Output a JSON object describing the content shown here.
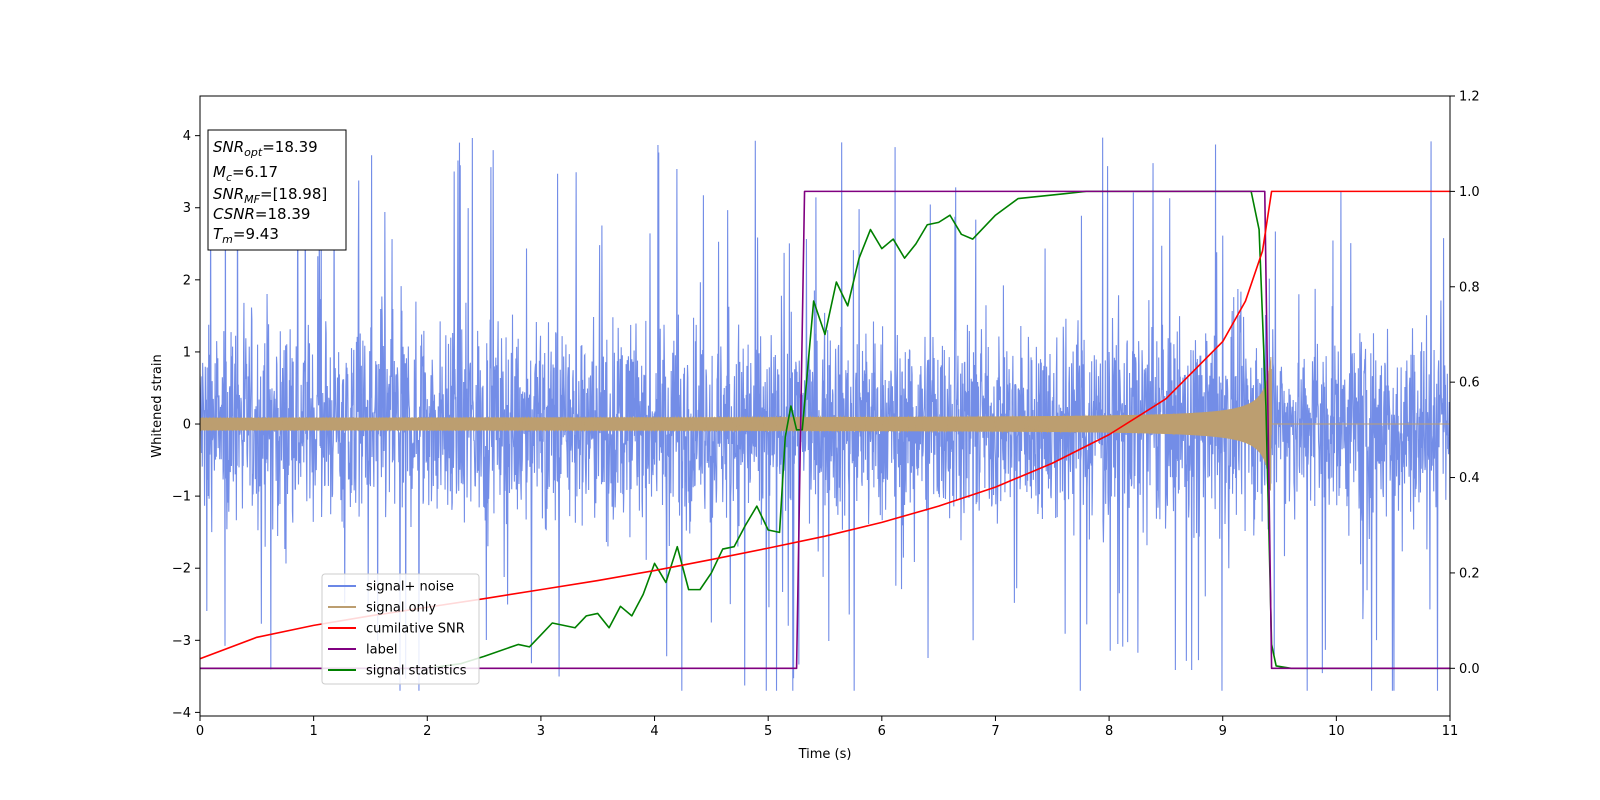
{
  "chart_data": {
    "type": "line",
    "title": "",
    "xlabel": "Time (s)",
    "ylabel": "Whitened strain",
    "y2label": "",
    "xlim": [
      0,
      11
    ],
    "ylim": [
      -4.05,
      4.55
    ],
    "y2lim": [
      -0.1,
      1.2
    ],
    "x_ticks": [
      0,
      1,
      2,
      3,
      4,
      5,
      6,
      7,
      8,
      9,
      10,
      11
    ],
    "y_ticks": [
      -4,
      -3,
      -2,
      -1,
      0,
      1,
      2,
      3,
      4
    ],
    "y2_ticks": [
      0.0,
      0.2,
      0.4,
      0.6,
      0.8,
      1.0,
      1.2
    ],
    "grid": false,
    "legend_location": "lower left",
    "colors": {
      "signal_noise": "#6b87e6",
      "signal_only": "#bc9e70",
      "cumulative_snr": "#ff0000",
      "label": "#800080",
      "signal_statistics": "#008000"
    },
    "series": [
      {
        "name": "signal+ noise",
        "axis": "left",
        "kind": "noisy strain",
        "description_values": {
          "typical_amplitude": 1.0,
          "peak_max": 4.15,
          "peak_min": -3.7
        }
      },
      {
        "name": "signal only",
        "axis": "left",
        "kind": "chirp",
        "start_time": 0.0,
        "merger_time": 9.43,
        "start_amplitude": 0.08,
        "peak_amplitude": 1.1
      },
      {
        "name": "cumilative SNR",
        "axis": "right",
        "x": [
          0.0,
          0.5,
          1.0,
          1.5,
          2.0,
          2.5,
          3.0,
          3.5,
          4.0,
          4.5,
          5.0,
          5.5,
          6.0,
          6.5,
          7.0,
          7.5,
          8.0,
          8.5,
          9.0,
          9.2,
          9.35,
          9.43,
          11.0
        ],
        "y": [
          0.02,
          0.065,
          0.09,
          0.11,
          0.128,
          0.146,
          0.165,
          0.184,
          0.205,
          0.228,
          0.252,
          0.277,
          0.306,
          0.34,
          0.38,
          0.43,
          0.49,
          0.565,
          0.685,
          0.77,
          0.875,
          1.0,
          1.0
        ]
      },
      {
        "name": "label",
        "axis": "right",
        "x": [
          0.0,
          5.25,
          5.32,
          9.37,
          9.43,
          11.0
        ],
        "y": [
          0.0,
          0.0,
          1.0,
          1.0,
          0.0,
          0.0
        ]
      },
      {
        "name": "signal statistics",
        "axis": "right",
        "x": [
          0.0,
          0.5,
          1.0,
          1.5,
          2.0,
          2.3,
          2.5,
          2.8,
          2.9,
          3.0,
          3.1,
          3.2,
          3.3,
          3.4,
          3.5,
          3.6,
          3.7,
          3.8,
          3.9,
          4.0,
          4.1,
          4.2,
          4.3,
          4.4,
          4.5,
          4.6,
          4.7,
          4.8,
          4.9,
          5.0,
          5.1,
          5.15,
          5.2,
          5.25,
          5.3,
          5.4,
          5.5,
          5.6,
          5.7,
          5.8,
          5.9,
          6.0,
          6.1,
          6.2,
          6.3,
          6.4,
          6.5,
          6.6,
          6.7,
          6.8,
          7.0,
          7.2,
          7.4,
          7.6,
          7.8,
          8.0,
          8.5,
          9.0,
          9.25,
          9.32,
          9.38,
          9.43,
          9.47,
          9.6,
          11.0
        ],
        "y": [
          0.0,
          0.0,
          0.0,
          0.0,
          0.0,
          0.01,
          0.025,
          0.05,
          0.045,
          0.07,
          0.095,
          0.09,
          0.085,
          0.11,
          0.115,
          0.085,
          0.13,
          0.11,
          0.155,
          0.22,
          0.18,
          0.255,
          0.165,
          0.165,
          0.2,
          0.25,
          0.255,
          0.3,
          0.34,
          0.29,
          0.285,
          0.485,
          0.55,
          0.5,
          0.5,
          0.77,
          0.7,
          0.81,
          0.76,
          0.86,
          0.92,
          0.88,
          0.9,
          0.86,
          0.89,
          0.93,
          0.935,
          0.95,
          0.91,
          0.9,
          0.95,
          0.985,
          0.99,
          0.995,
          1.0,
          1.0,
          1.0,
          1.0,
          1.0,
          0.92,
          0.55,
          0.05,
          0.005,
          0.0,
          0.0
        ]
      }
    ],
    "stats_box": {
      "lines": [
        {
          "sym": "SNR",
          "sub": "opt",
          "value": "=18.39"
        },
        {
          "sym": "M",
          "sub": "c",
          "value": "=6.17"
        },
        {
          "sym": "SNR",
          "sub": "MF",
          "value": "=[18.98]"
        },
        {
          "sym": "CSNR",
          "sub": "",
          "value": "=18.39"
        },
        {
          "sym": "T",
          "sub": "m",
          "value": "=9.43"
        }
      ]
    }
  }
}
